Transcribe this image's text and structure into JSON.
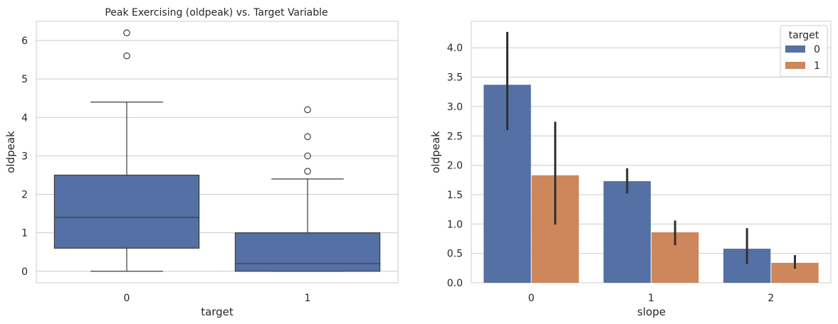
{
  "colors": {
    "grid": "#cccccc",
    "spine": "#cccccc",
    "series0": "#5470a5",
    "series1": "#cd875b",
    "boxline": "#3c3c3c",
    "errbar": "#303030"
  },
  "chart_data": [
    {
      "type": "box",
      "title": "Peak Exercising (oldpeak) vs. Target Variable",
      "xlabel": "target",
      "ylabel": "oldpeak",
      "categories": [
        "0",
        "1"
      ],
      "ylim": [
        -0.3,
        6.5
      ],
      "yticks": [
        0,
        1,
        2,
        3,
        4,
        5,
        6
      ],
      "ytick_labels": [
        "0",
        "1",
        "2",
        "3",
        "4",
        "5",
        "6"
      ],
      "boxes": [
        {
          "category": "0",
          "whisker_low": 0,
          "q1": 0.6,
          "median": 1.4,
          "q3": 2.5,
          "whisker_high": 4.4,
          "outliers": [
            5.6,
            6.2
          ]
        },
        {
          "category": "1",
          "whisker_low": 0,
          "q1": 0,
          "median": 0.2,
          "q3": 1.0,
          "whisker_high": 2.4,
          "outliers": [
            2.6,
            3.0,
            3.5,
            4.2
          ]
        }
      ]
    },
    {
      "type": "bar",
      "title": "",
      "xlabel": "slope",
      "ylabel": "oldpeak",
      "categories": [
        "0",
        "1",
        "2"
      ],
      "ylim": [
        0,
        4.45
      ],
      "yticks": [
        0,
        0.5,
        1.0,
        1.5,
        2.0,
        2.5,
        3.0,
        3.5,
        4.0
      ],
      "ytick_labels": [
        "0.0",
        "0.5",
        "1.0",
        "1.5",
        "2.0",
        "2.5",
        "3.0",
        "3.5",
        "4.0"
      ],
      "legend": {
        "title": "target",
        "position": "top-right"
      },
      "series": [
        {
          "name": "0",
          "values": [
            3.37,
            1.73,
            0.58
          ],
          "err_low": [
            2.6,
            1.52,
            0.32
          ],
          "err_high": [
            4.27,
            1.95,
            0.93
          ]
        },
        {
          "name": "1",
          "values": [
            1.83,
            0.86,
            0.34
          ],
          "err_low": [
            0.99,
            0.64,
            0.24
          ],
          "err_high": [
            2.74,
            1.06,
            0.47
          ]
        }
      ]
    }
  ]
}
